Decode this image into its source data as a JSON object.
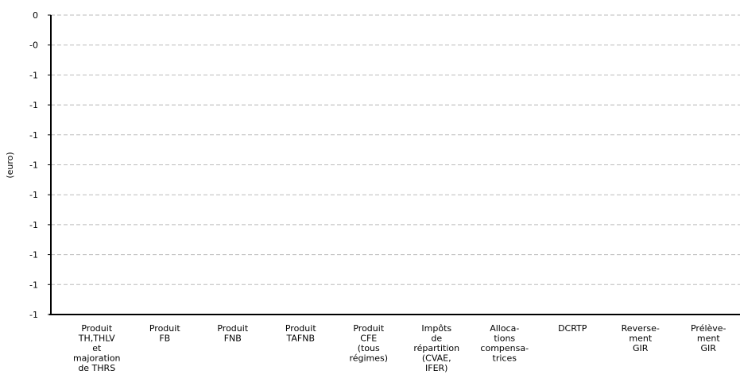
{
  "chart_data": {
    "type": "bar",
    "ylabel": "(euro)",
    "ytick_labels": [
      "0",
      "-0",
      "-1",
      "-1",
      "-1",
      "-1",
      "-1",
      "-1",
      "-1",
      "-1",
      "-1"
    ],
    "categories": [
      [
        "Produit",
        "TH,THLV",
        "et",
        "majoration",
        "de THRS"
      ],
      [
        "Produit",
        "FB"
      ],
      [
        "Produit",
        "FNB"
      ],
      [
        "Produit",
        "TAFNB"
      ],
      [
        "Produit",
        "CFE",
        "(tous",
        "régimes)"
      ],
      [
        "Impôts",
        "de",
        "répartition",
        "(CVAE,",
        "IFER)"
      ],
      [
        "Alloca-",
        "tions",
        "compensa-",
        "trices"
      ],
      [
        "DCRTP"
      ],
      [
        "Reverse-",
        "ment",
        "GIR"
      ],
      [
        "Prélève-",
        "ment",
        "GIR"
      ]
    ],
    "values": [
      0,
      0,
      0,
      0,
      0,
      0,
      0,
      0,
      0,
      0
    ],
    "grid": true,
    "colors": {
      "axis": "#000000",
      "grid": "#bbbbbb",
      "text": "#000000"
    }
  }
}
